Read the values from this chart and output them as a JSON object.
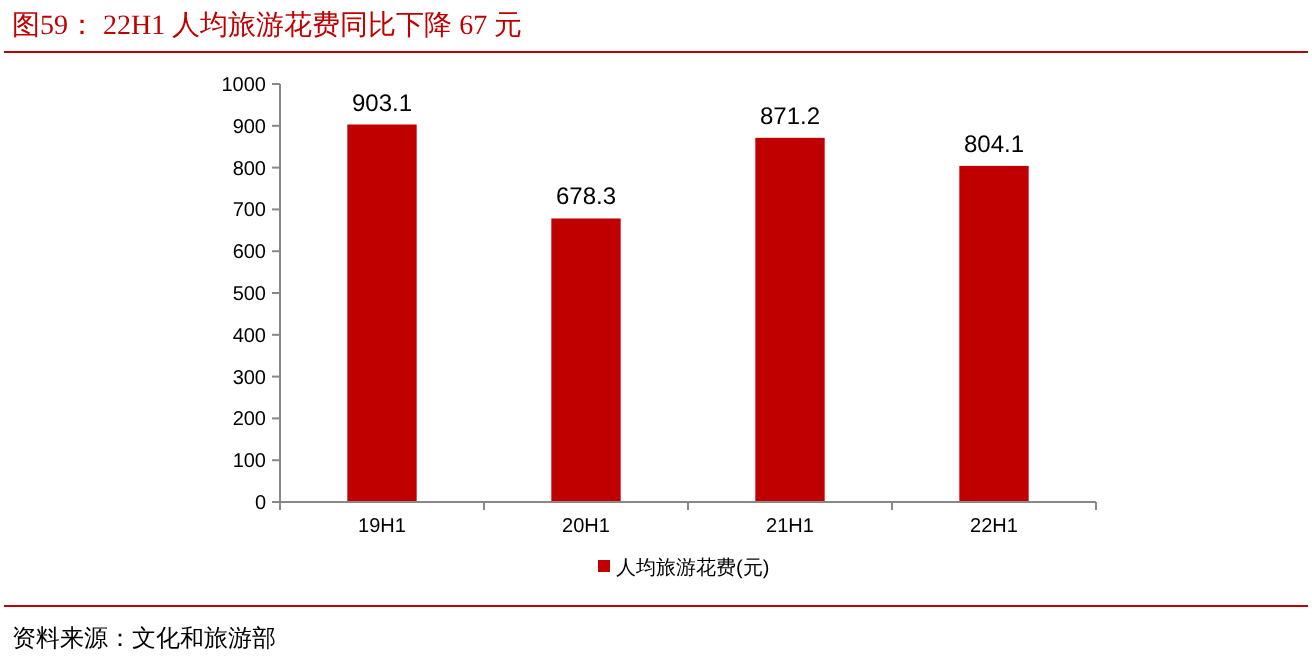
{
  "chart_data": {
    "type": "bar",
    "title": "图59： 22H1 人均旅游花费同比下降 67 元",
    "annotations": [
      "资料来源：文化和旅游部"
    ],
    "categories": [
      "19H1",
      "20H1",
      "21H1",
      "22H1"
    ],
    "series": [
      {
        "name": "人均旅游花费(元)",
        "color": "#c00000",
        "values": [
          903.1,
          678.3,
          871.2,
          804.1
        ]
      }
    ],
    "ylim": [
      0,
      1000
    ],
    "yticks": [
      0,
      100,
      200,
      300,
      400,
      500,
      600,
      700,
      800,
      900,
      1000
    ],
    "data_labels": true,
    "legend": "bottom",
    "grid": false
  }
}
